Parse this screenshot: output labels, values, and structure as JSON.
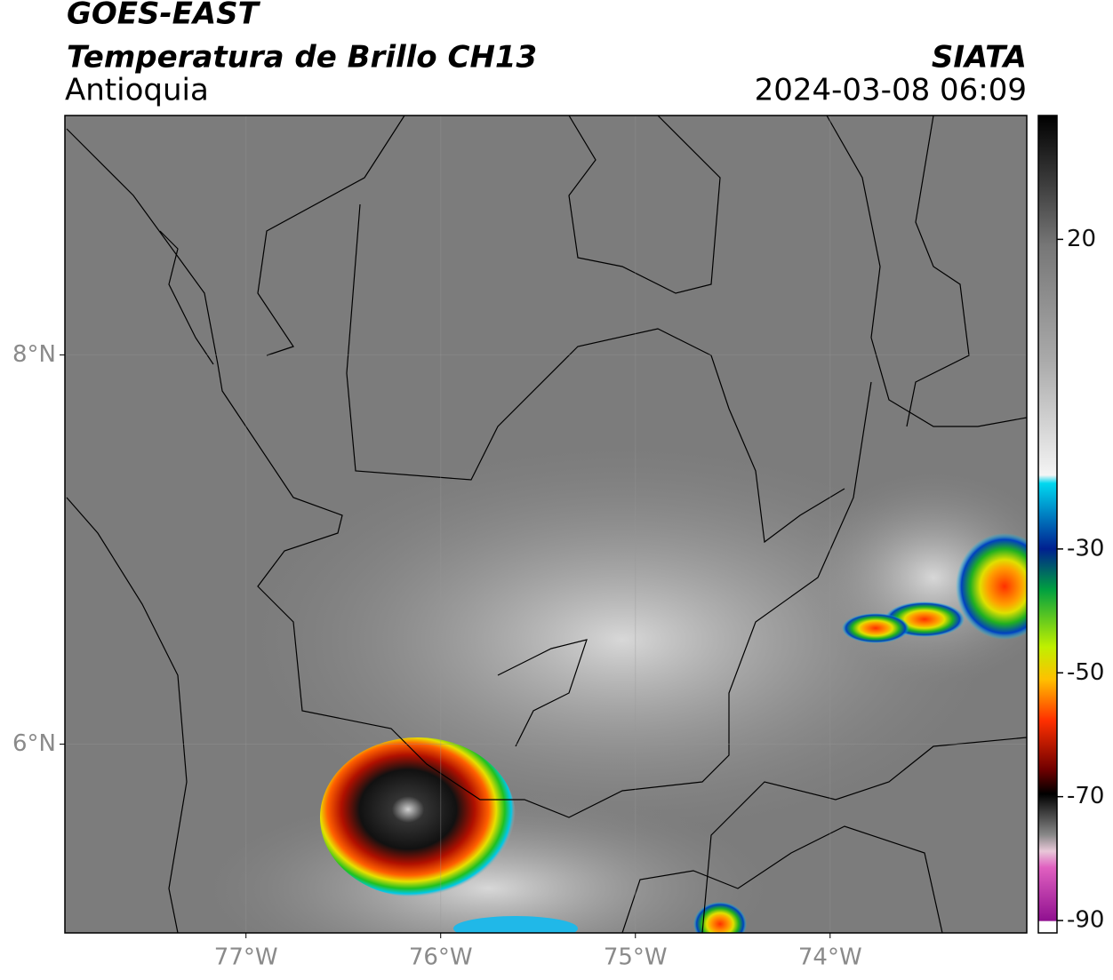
{
  "header": {
    "title": "GOES-EAST",
    "subtitle": "Temperatura de Brillo CH13",
    "region": "Antioquia",
    "source": "SIATA",
    "datetime": "2024-03-08 06:09"
  },
  "map": {
    "xlim": [
      -77.93,
      -72.99
    ],
    "ylim": [
      5.03,
      9.23
    ],
    "xticks": [
      {
        "value": -77,
        "label": "77°W"
      },
      {
        "value": -76,
        "label": "76°W"
      },
      {
        "value": -75,
        "label": "75°W"
      },
      {
        "value": -74,
        "label": "74°W"
      }
    ],
    "yticks": [
      {
        "value": 8,
        "label": "8°N"
      },
      {
        "value": 6,
        "label": "6°N"
      }
    ],
    "grid": true
  },
  "colorbar": {
    "lim": [
      -92,
      40
    ],
    "ticks": [
      20,
      -30,
      -50,
      -70,
      -90
    ]
  }
}
